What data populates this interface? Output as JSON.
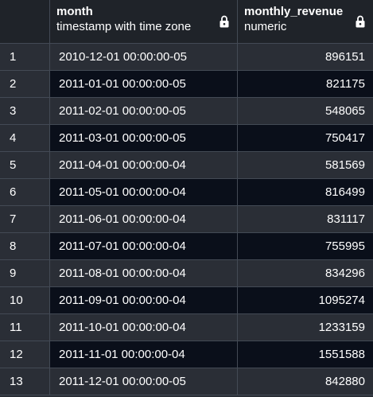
{
  "columns": [
    {
      "name": "month",
      "type": "timestamp with time zone",
      "locked": true
    },
    {
      "name": "monthly_revenue",
      "type": "numeric",
      "locked": true
    }
  ],
  "rows": [
    {
      "index": "1",
      "month": "2010-12-01 00:00:00-05",
      "monthly_revenue": "896151"
    },
    {
      "index": "2",
      "month": "2011-01-01 00:00:00-05",
      "monthly_revenue": "821175"
    },
    {
      "index": "3",
      "month": "2011-02-01 00:00:00-05",
      "monthly_revenue": "548065"
    },
    {
      "index": "4",
      "month": "2011-03-01 00:00:00-05",
      "monthly_revenue": "750417"
    },
    {
      "index": "5",
      "month": "2011-04-01 00:00:00-04",
      "monthly_revenue": "581569"
    },
    {
      "index": "6",
      "month": "2011-05-01 00:00:00-04",
      "monthly_revenue": "816499"
    },
    {
      "index": "7",
      "month": "2011-06-01 00:00:00-04",
      "monthly_revenue": "831117"
    },
    {
      "index": "8",
      "month": "2011-07-01 00:00:00-04",
      "monthly_revenue": "755995"
    },
    {
      "index": "9",
      "month": "2011-08-01 00:00:00-04",
      "monthly_revenue": "834296"
    },
    {
      "index": "10",
      "month": "2011-09-01 00:00:00-04",
      "monthly_revenue": "1095274"
    },
    {
      "index": "11",
      "month": "2011-10-01 00:00:00-04",
      "monthly_revenue": "1233159"
    },
    {
      "index": "12",
      "month": "2011-11-01 00:00:00-04",
      "monthly_revenue": "1551588"
    },
    {
      "index": "13",
      "month": "2011-12-01 00:00:00-05",
      "monthly_revenue": "842880"
    }
  ],
  "icons": {
    "column_lock": "lock-icon"
  },
  "colors": {
    "header_bg": "#1f2329",
    "row_odd_bg": "#2a2e36",
    "row_even_bg": "#0a0f1a",
    "grid_line": "#434a55",
    "text": "#ffffff"
  }
}
